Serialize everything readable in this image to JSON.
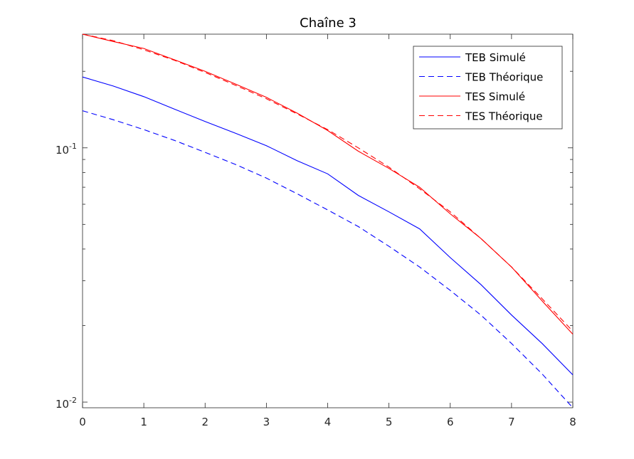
{
  "chart_data": {
    "type": "line",
    "title": "Chaîne 3",
    "xlabel": "",
    "ylabel": "",
    "xlim": [
      0,
      8
    ],
    "ylim": [
      0.0095,
      0.28
    ],
    "yscale": "log",
    "xticks": [
      "0",
      "1",
      "2",
      "3",
      "4",
      "5",
      "6",
      "7",
      "8"
    ],
    "yticks": [
      {
        "value": 0.1,
        "base": "10",
        "exp": "-1"
      },
      {
        "value": 0.01,
        "base": "10",
        "exp": "-2"
      }
    ],
    "grid": false,
    "legend_position": "top-right",
    "series": [
      {
        "name": "TEB Simulé",
        "color": "#0000ff",
        "style": "solid",
        "x": [
          0,
          0.5,
          1,
          1.5,
          2,
          2.5,
          3,
          3.5,
          4,
          4.5,
          5,
          5.5,
          6,
          6.5,
          7,
          7.5,
          8
        ],
        "y": [
          0.19,
          0.175,
          0.159,
          0.142,
          0.127,
          0.114,
          0.102,
          0.089,
          0.079,
          0.065,
          0.056,
          0.048,
          0.037,
          0.029,
          0.022,
          0.017,
          0.0128
        ]
      },
      {
        "name": "TEB Théorique",
        "color": "#0000ff",
        "style": "dashed",
        "x": [
          0,
          0.5,
          1,
          1.5,
          2,
          2.5,
          3,
          3.5,
          4,
          4.5,
          5,
          5.5,
          6,
          6.5,
          7,
          7.5,
          8
        ],
        "y": [
          0.14,
          0.129,
          0.118,
          0.107,
          0.096,
          0.086,
          0.076,
          0.066,
          0.057,
          0.049,
          0.041,
          0.034,
          0.0275,
          0.022,
          0.017,
          0.0129,
          0.0095
        ]
      },
      {
        "name": "TES Simulé",
        "color": "#ff0000",
        "style": "solid",
        "x": [
          0,
          0.5,
          1,
          1.5,
          2,
          2.5,
          3,
          3.5,
          4,
          4.5,
          5,
          5.5,
          6,
          6.5,
          7,
          7.5,
          8
        ],
        "y": [
          0.28,
          0.262,
          0.246,
          0.222,
          0.2,
          0.178,
          0.158,
          0.137,
          0.117,
          0.097,
          0.083,
          0.07,
          0.055,
          0.044,
          0.034,
          0.025,
          0.0185
        ]
      },
      {
        "name": "TES Théorique",
        "color": "#ff0000",
        "style": "dashed",
        "x": [
          0,
          0.5,
          1,
          1.5,
          2,
          2.5,
          3,
          3.5,
          4,
          4.5,
          5,
          5.5,
          6,
          6.5,
          7,
          7.5,
          8
        ],
        "y": [
          0.28,
          0.264,
          0.243,
          0.221,
          0.198,
          0.176,
          0.156,
          0.136,
          0.118,
          0.1,
          0.084,
          0.069,
          0.056,
          0.044,
          0.034,
          0.0255,
          0.019
        ]
      }
    ]
  }
}
